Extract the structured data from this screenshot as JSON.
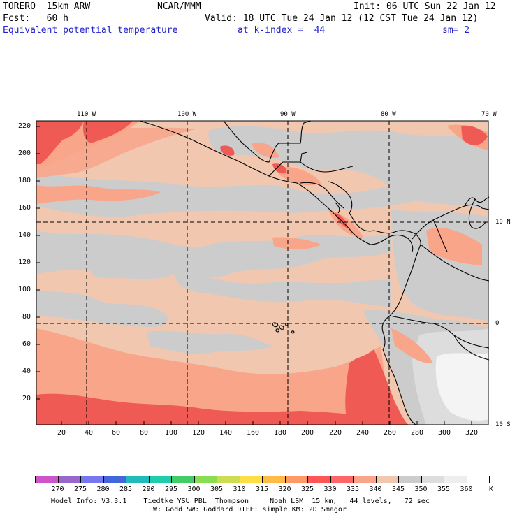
{
  "header": {
    "model": "TORERO  15km ARW",
    "org": "NCAR/MMM",
    "init": "Init: 06 UTC Sun 22 Jan 12",
    "fcst": "Fcst:   60 h",
    "valid": "Valid: 18 UTC Tue 24 Jan 12 (12 CST Tue 24 Jan 12)",
    "field": "Equivalent potential temperature",
    "level": "at k-index =  44",
    "smooth": "sm= 2"
  },
  "map": {
    "top_lon_labels": [
      "110 W",
      "100 W",
      "90 W",
      "80 W",
      "70 W"
    ],
    "right_lat_labels": [
      "10 N",
      "0",
      "10 S"
    ],
    "y_grid_labels": [
      "220",
      "200",
      "180",
      "160",
      "140",
      "120",
      "100",
      "80",
      "60",
      "40",
      "20"
    ],
    "x_grid_labels": [
      "20",
      "40",
      "60",
      "80",
      "100",
      "120",
      "140",
      "160",
      "180",
      "200",
      "220",
      "240",
      "260",
      "280",
      "300",
      "320"
    ]
  },
  "colorbar": {
    "levels": [
      "270",
      "275",
      "280",
      "285",
      "290",
      "295",
      "300",
      "305",
      "310",
      "315",
      "320",
      "325",
      "330",
      "335",
      "340",
      "345",
      "350",
      "355",
      "360"
    ],
    "unit": "K",
    "colors": [
      "#cc55cc",
      "#9966cc",
      "#7777ee",
      "#4466dd",
      "#22bbbb",
      "#22ccaa",
      "#44cc66",
      "#88dd55",
      "#ccdd55",
      "#ffdd44",
      "#ffbb44",
      "#ff9966",
      "#ff5555",
      "#ff6666",
      "#f8a58a",
      "#f2c7af",
      "#cccccc",
      "#dddddd",
      "#eeeeee",
      "#ffffff"
    ]
  },
  "footer": {
    "line1": "Model Info: V3.3.1    Tiedtke YSU PBL  Thompson     Noah LSM  15 km,   44 levels,   72 sec",
    "line2": "LW: Godd SW: Goddard DIFF: simple KM: 2D Smagor"
  },
  "field_colors": {
    "base": "#f2c7af",
    "light_red": "#f8a58a",
    "red": "#ef5a55",
    "gray": "#cccccc",
    "light_gray": "#dddddd",
    "white": "#f4f4f4"
  }
}
